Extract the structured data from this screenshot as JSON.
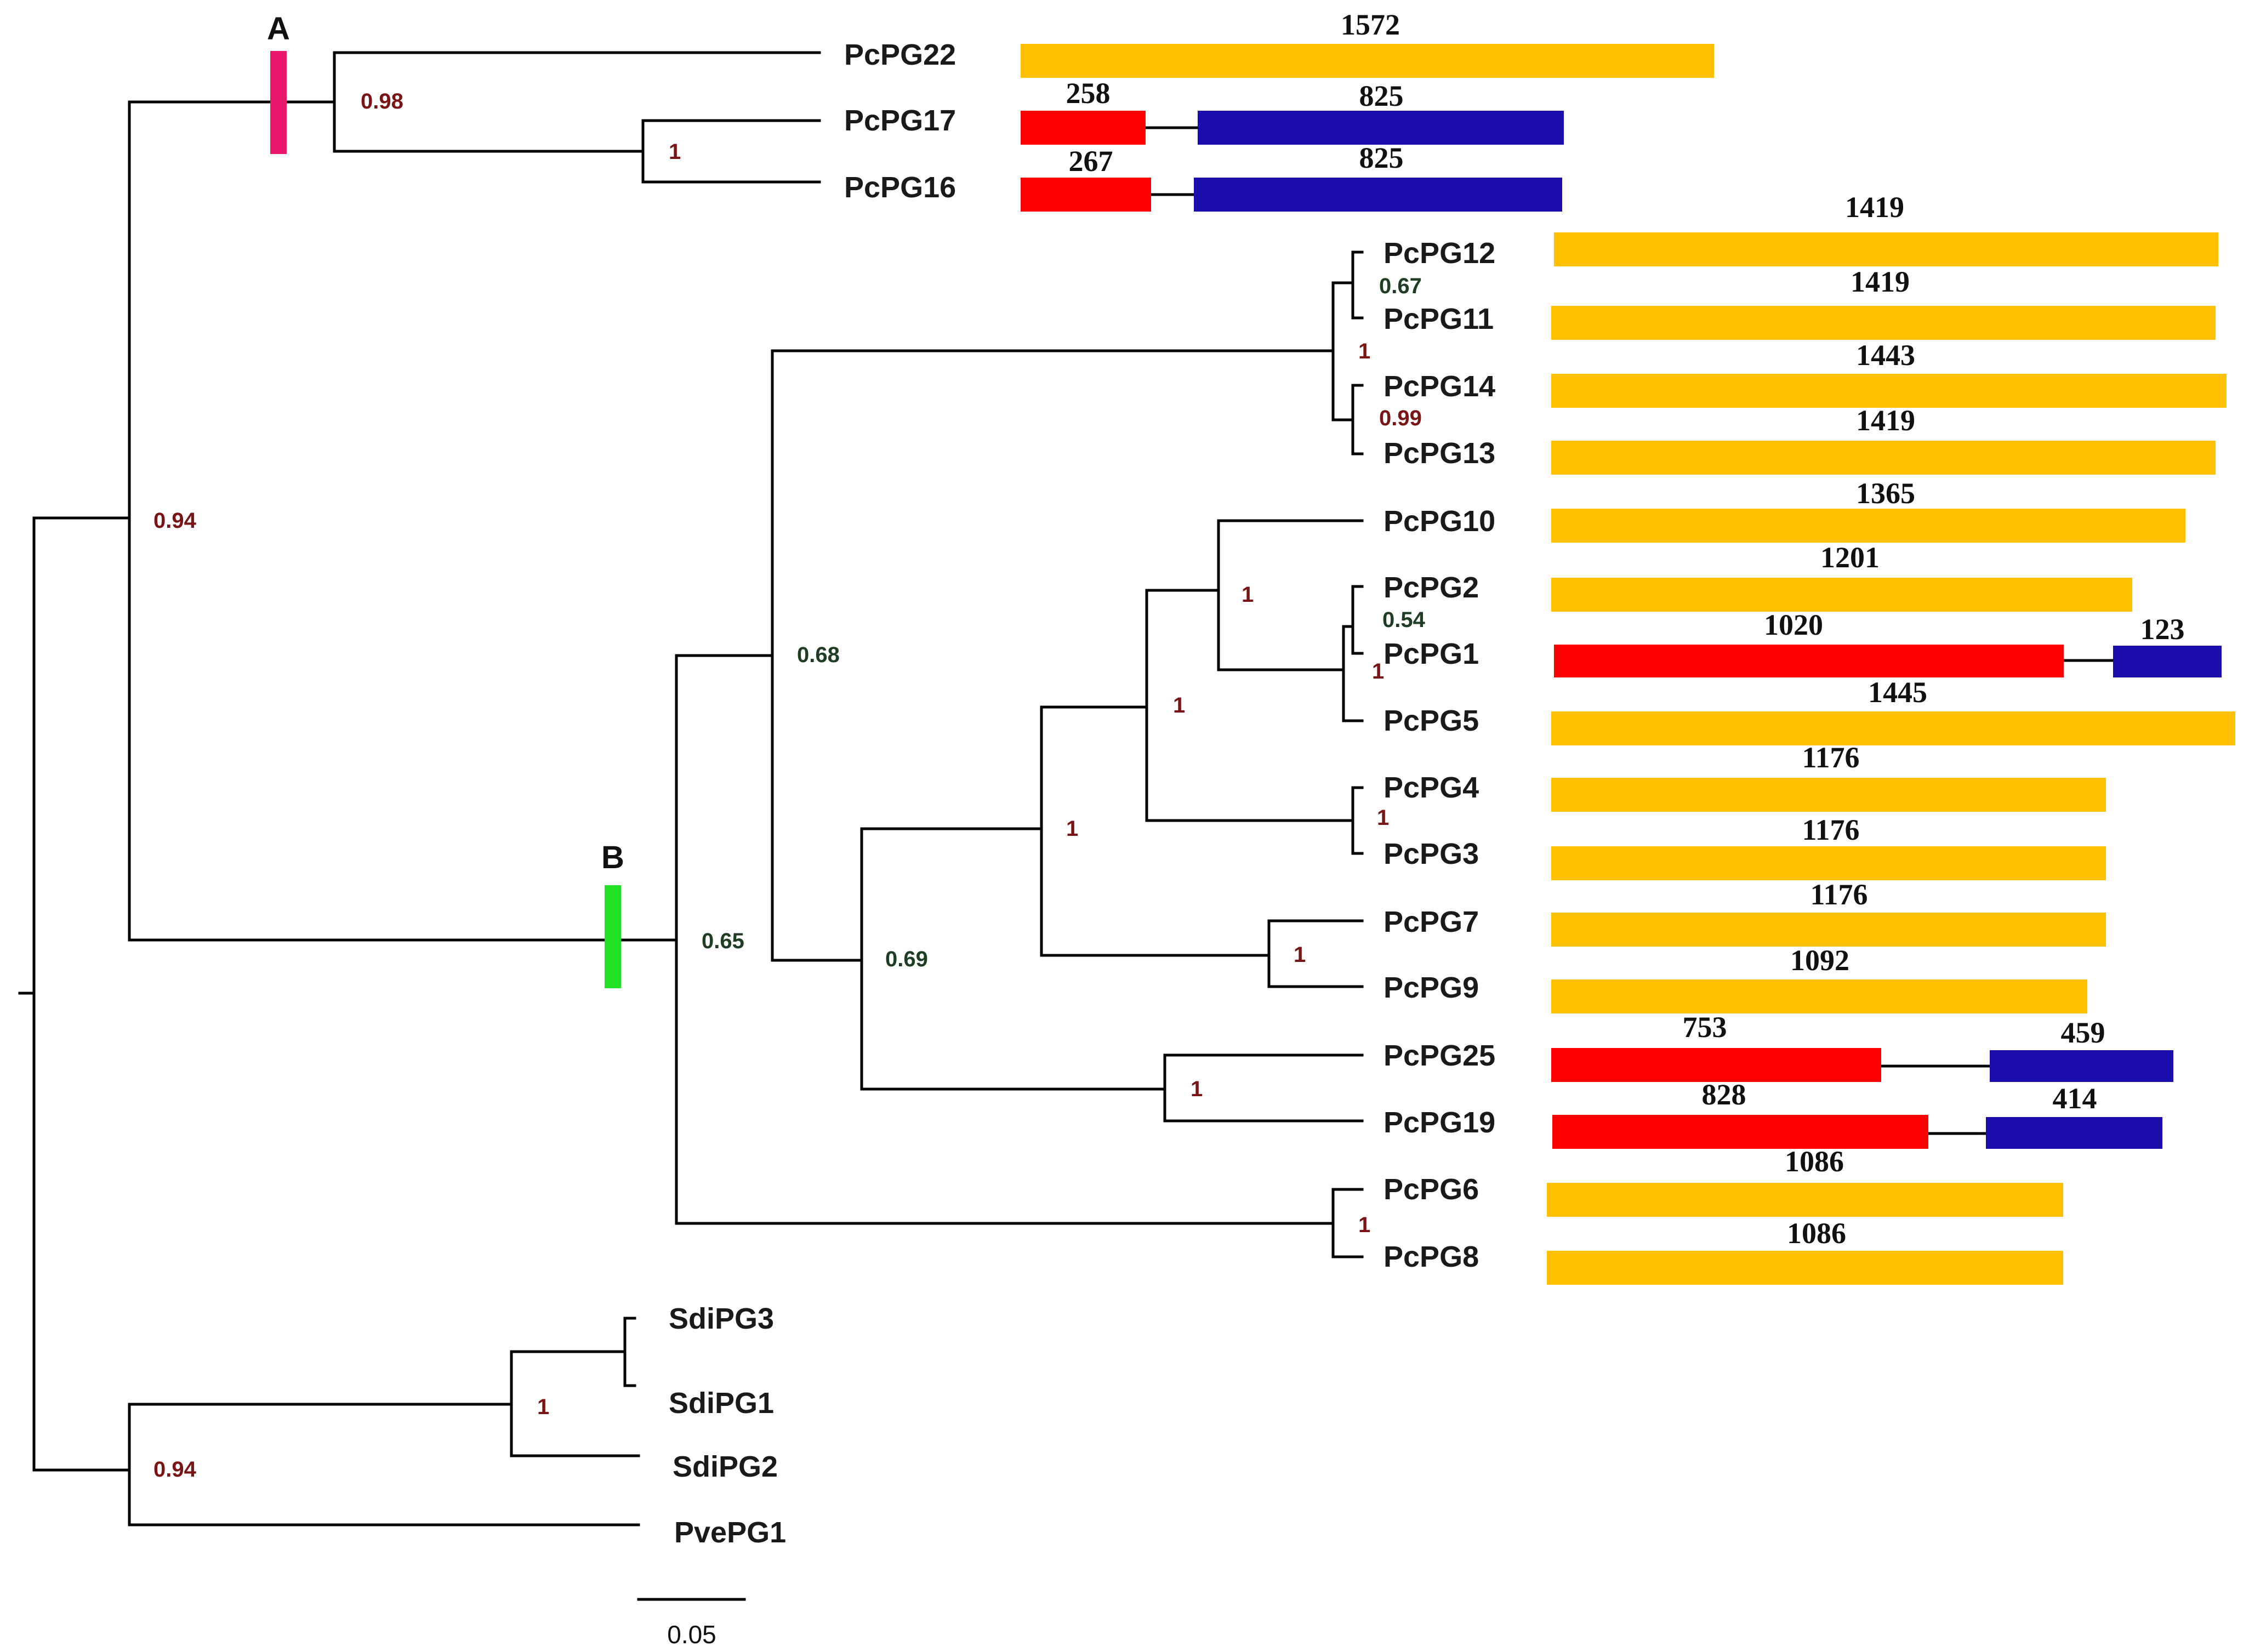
{
  "colors": {
    "domain_orange": "#FFC000",
    "domain_red": "#FF0000",
    "domain_blue": "#1A0DAB",
    "clade_A": "#E8176B",
    "clade_B": "#22E022",
    "support_red": "#7A1515",
    "support_green": "#1E3D22"
  },
  "clades": [
    {
      "id": "A",
      "label": "A"
    },
    {
      "id": "B",
      "label": "B"
    }
  ],
  "leaves": [
    {
      "id": "PcPG22",
      "label": "PcPG22"
    },
    {
      "id": "PcPG17",
      "label": "PcPG17"
    },
    {
      "id": "PcPG16",
      "label": "PcPG16"
    },
    {
      "id": "PcPG12",
      "label": "PcPG12"
    },
    {
      "id": "PcPG11",
      "label": "PcPG11"
    },
    {
      "id": "PcPG14",
      "label": "PcPG14"
    },
    {
      "id": "PcPG13",
      "label": "PcPG13"
    },
    {
      "id": "PcPG10",
      "label": "PcPG10"
    },
    {
      "id": "PcPG2",
      "label": "PcPG2"
    },
    {
      "id": "PcPG1",
      "label": "PcPG1"
    },
    {
      "id": "PcPG5",
      "label": "PcPG5"
    },
    {
      "id": "PcPG4",
      "label": "PcPG4"
    },
    {
      "id": "PcPG3",
      "label": "PcPG3"
    },
    {
      "id": "PcPG7",
      "label": "PcPG7"
    },
    {
      "id": "PcPG9",
      "label": "PcPG9"
    },
    {
      "id": "PcPG25",
      "label": "PcPG25"
    },
    {
      "id": "PcPG19",
      "label": "PcPG19"
    },
    {
      "id": "PcPG6",
      "label": "PcPG6"
    },
    {
      "id": "PcPG8",
      "label": "PcPG8"
    },
    {
      "id": "SdiPG3",
      "label": "SdiPG3"
    },
    {
      "id": "SdiPG1",
      "label": "SdiPG1"
    },
    {
      "id": "SdiPG2",
      "label": "SdiPG2"
    },
    {
      "id": "PvePG1",
      "label": "PvePG1"
    }
  ],
  "supports": [
    {
      "id": "root-left",
      "value": "0.94",
      "color": "support_red"
    },
    {
      "id": "clade-a",
      "value": "0.98",
      "color": "support_red"
    },
    {
      "id": "pg17-pg16",
      "value": "1",
      "color": "support_red"
    },
    {
      "id": "pg12-pg11",
      "value": "0.67",
      "color": "support_green"
    },
    {
      "id": "pg12-13-group",
      "value": "1",
      "color": "support_red"
    },
    {
      "id": "pg14-pg13",
      "value": "0.99",
      "color": "support_red"
    },
    {
      "id": "pg10-group",
      "value": "1",
      "color": "support_red"
    },
    {
      "id": "pg2-pg1",
      "value": "0.54",
      "color": "support_green"
    },
    {
      "id": "pg2-1-5",
      "value": "1",
      "color": "support_red"
    },
    {
      "id": "pg10-to-pg3",
      "value": "1",
      "color": "support_red"
    },
    {
      "id": "pg4-pg3",
      "value": "1",
      "color": "support_red"
    },
    {
      "id": "pg10-to-pg9",
      "value": "1",
      "color": "support_red"
    },
    {
      "id": "pg7-pg9",
      "value": "1",
      "color": "support_red"
    },
    {
      "id": "big-group",
      "value": "0.68",
      "color": "support_green"
    },
    {
      "id": "clade-b",
      "value": "0.65",
      "color": "support_green"
    },
    {
      "id": "pg10-to-pg19",
      "value": "0.69",
      "color": "support_green"
    },
    {
      "id": "pg25-pg19",
      "value": "1",
      "color": "support_red"
    },
    {
      "id": "pg6-pg8",
      "value": "1",
      "color": "support_red"
    },
    {
      "id": "sdi-group",
      "value": "1",
      "color": "support_red"
    },
    {
      "id": "outgroup",
      "value": "0.94",
      "color": "support_red"
    }
  ],
  "domains": [
    {
      "id": "pg22-a",
      "value": "1572",
      "color": "domain_orange"
    },
    {
      "id": "pg17-a",
      "value": "258",
      "color": "domain_red"
    },
    {
      "id": "pg17-b",
      "value": "825",
      "color": "domain_blue"
    },
    {
      "id": "pg16-a",
      "value": "267",
      "color": "domain_red"
    },
    {
      "id": "pg16-b",
      "value": "825",
      "color": "domain_blue"
    },
    {
      "id": "pg12-a",
      "value": "1419",
      "color": "domain_orange"
    },
    {
      "id": "pg11-a",
      "value": "1419",
      "color": "domain_orange"
    },
    {
      "id": "pg14-a",
      "value": "1443",
      "color": "domain_orange"
    },
    {
      "id": "pg13-a",
      "value": "1419",
      "color": "domain_orange"
    },
    {
      "id": "pg10-a",
      "value": "1365",
      "color": "domain_orange"
    },
    {
      "id": "pg2-a",
      "value": "1201",
      "color": "domain_orange"
    },
    {
      "id": "pg1-a",
      "value": "1020",
      "color": "domain_red"
    },
    {
      "id": "pg1-b",
      "value": "123",
      "color": "domain_blue"
    },
    {
      "id": "pg5-a",
      "value": "1445",
      "color": "domain_orange"
    },
    {
      "id": "pg4-a",
      "value": "1176",
      "color": "domain_orange"
    },
    {
      "id": "pg3-a",
      "value": "1176",
      "color": "domain_orange"
    },
    {
      "id": "pg7-a",
      "value": "1176",
      "color": "domain_orange"
    },
    {
      "id": "pg9-a",
      "value": "1092",
      "color": "domain_orange"
    },
    {
      "id": "pg25-a",
      "value": "753",
      "color": "domain_red"
    },
    {
      "id": "pg25-b",
      "value": "459",
      "color": "domain_blue"
    },
    {
      "id": "pg19-a",
      "value": "828",
      "color": "domain_red"
    },
    {
      "id": "pg19-b",
      "value": "414",
      "color": "domain_blue"
    },
    {
      "id": "pg6-a",
      "value": "1086",
      "color": "domain_orange"
    },
    {
      "id": "pg8-a",
      "value": "1086",
      "color": "domain_orange"
    }
  ],
  "scale_bar": {
    "label": "0.05"
  }
}
